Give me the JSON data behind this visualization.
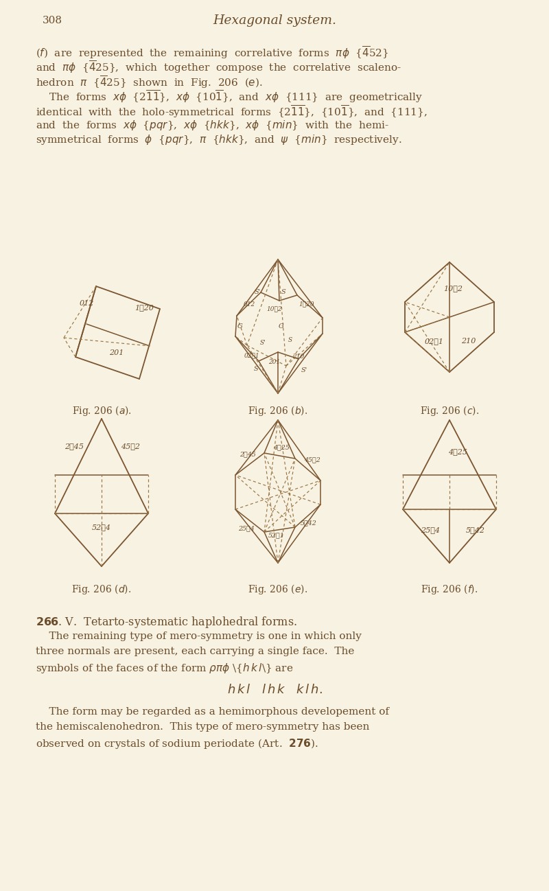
{
  "background_color": "#f7f2e2",
  "page_number": "308",
  "page_title": "Hexagonal system.",
  "text_color": "#6b4c2a",
  "line_color": "#7a5530",
  "dashed_color": "#9a7545",
  "fig_labels": [
    "Fig. 206 (a).",
    "Fig. 206 (b).",
    "Fig. 206 (c).",
    "Fig. 206 (d).",
    "Fig. 206 (e).",
    "Fig. 206 (f)."
  ]
}
